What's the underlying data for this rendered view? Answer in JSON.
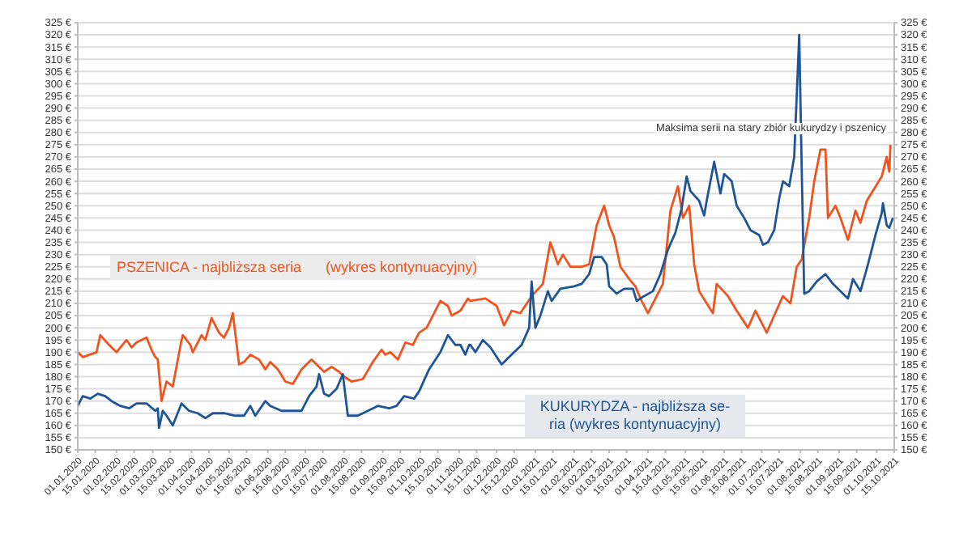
{
  "chart_data": {
    "type": "line",
    "xlim": [
      "2020-01-01",
      "2021-10-15"
    ],
    "xticks": [
      {
        "value": "2020-01-01",
        "label": "01.01.2020"
      },
      {
        "value": "2020-01-15",
        "label": "15.01.2020"
      },
      {
        "value": "2020-02-01",
        "label": "01.02.2020"
      },
      {
        "value": "2020-02-15",
        "label": "15.02.2020"
      },
      {
        "value": "2020-03-01",
        "label": "01.03.2020"
      },
      {
        "value": "2020-03-15",
        "label": "15.03.2020"
      },
      {
        "value": "2020-04-01",
        "label": "01.04.2020"
      },
      {
        "value": "2020-04-15",
        "label": "15.04.2020"
      },
      {
        "value": "2020-05-01",
        "label": "01.05.2020"
      },
      {
        "value": "2020-05-15",
        "label": "15.05.2020"
      },
      {
        "value": "2020-06-01",
        "label": "01.06.2020"
      },
      {
        "value": "2020-06-15",
        "label": "15.06.2020"
      },
      {
        "value": "2020-07-01",
        "label": "01.07.2020"
      },
      {
        "value": "2020-07-15",
        "label": "15.07.2020"
      },
      {
        "value": "2020-08-01",
        "label": "01.08.2020"
      },
      {
        "value": "2020-08-15",
        "label": "15.08.2020"
      },
      {
        "value": "2020-09-01",
        "label": "01.09.2020"
      },
      {
        "value": "2020-09-15",
        "label": "15.09.2020"
      },
      {
        "value": "2020-10-01",
        "label": "01.10.2020"
      },
      {
        "value": "2020-10-15",
        "label": "15.10.2020"
      },
      {
        "value": "2020-11-01",
        "label": "01.11.2020"
      },
      {
        "value": "2020-11-15",
        "label": "15.11.2020"
      },
      {
        "value": "2020-12-01",
        "label": "01.12.2020"
      },
      {
        "value": "2020-12-15",
        "label": "15.12.2020"
      },
      {
        "value": "2021-01-01",
        "label": "01.01.2021"
      },
      {
        "value": "2021-01-15",
        "label": "15.01.2021"
      },
      {
        "value": "2021-02-01",
        "label": "01.02.2021"
      },
      {
        "value": "2021-02-15",
        "label": "15.02.2021"
      },
      {
        "value": "2021-03-01",
        "label": "01.03.2021"
      },
      {
        "value": "2021-03-15",
        "label": "15.03.2021"
      },
      {
        "value": "2021-04-01",
        "label": "01.04.2021"
      },
      {
        "value": "2021-04-15",
        "label": "15.04.2021"
      },
      {
        "value": "2021-05-01",
        "label": "01.05.2021"
      },
      {
        "value": "2021-05-15",
        "label": "15.05.2021"
      },
      {
        "value": "2021-06-01",
        "label": "01.06.2021"
      },
      {
        "value": "2021-06-15",
        "label": "15.06.2021"
      },
      {
        "value": "2021-07-01",
        "label": "01.07.2021"
      },
      {
        "value": "2021-07-15",
        "label": "15.07.2021"
      },
      {
        "value": "2021-08-01",
        "label": "01.08.2021"
      },
      {
        "value": "2021-08-15",
        "label": "15.08.2021"
      },
      {
        "value": "2021-09-01",
        "label": "01.09.2021"
      },
      {
        "value": "2021-09-15",
        "label": "15.09.2021"
      },
      {
        "value": "2021-10-01",
        "label": "01.10.2021"
      },
      {
        "value": "2021-10-15",
        "label": "15.10.2021"
      }
    ],
    "ylim": [
      150,
      325
    ],
    "yticks": [
      {
        "value": 150,
        "label": "150 €"
      },
      {
        "value": 155,
        "label": "155 €"
      },
      {
        "value": 160,
        "label": "160 €"
      },
      {
        "value": 165,
        "label": "165 €"
      },
      {
        "value": 170,
        "label": "170 €"
      },
      {
        "value": 175,
        "label": "175 €"
      },
      {
        "value": 180,
        "label": "180 €"
      },
      {
        "value": 185,
        "label": "185 €"
      },
      {
        "value": 190,
        "label": "190 €"
      },
      {
        "value": 195,
        "label": "195 €"
      },
      {
        "value": 200,
        "label": "200 €"
      },
      {
        "value": 205,
        "label": "205 €"
      },
      {
        "value": 210,
        "label": "210 €"
      },
      {
        "value": 215,
        "label": "215 €"
      },
      {
        "value": 220,
        "label": "220 €"
      },
      {
        "value": 225,
        "label": "225 €"
      },
      {
        "value": 230,
        "label": "230 €"
      },
      {
        "value": 235,
        "label": "235 €"
      },
      {
        "value": 240,
        "label": "240 €"
      },
      {
        "value": 245,
        "label": "245 €"
      },
      {
        "value": 250,
        "label": "250 €"
      },
      {
        "value": 255,
        "label": "255 €"
      },
      {
        "value": 260,
        "label": "260 €"
      },
      {
        "value": 265,
        "label": "265 €"
      },
      {
        "value": 270,
        "label": "270 €"
      },
      {
        "value": 275,
        "label": "275 €"
      },
      {
        "value": 280,
        "label": "280 €"
      },
      {
        "value": 285,
        "label": "285 €"
      },
      {
        "value": 290,
        "label": "290 €"
      },
      {
        "value": 295,
        "label": "295 €"
      },
      {
        "value": 300,
        "label": "300 €"
      },
      {
        "value": 305,
        "label": "305 €"
      },
      {
        "value": 310,
        "label": "310 €"
      },
      {
        "value": 315,
        "label": "315 €"
      },
      {
        "value": 320,
        "label": "320 €"
      },
      {
        "value": 325,
        "label": "325 €"
      }
    ],
    "y2lim": [
      150,
      325
    ],
    "y2ticks": [
      {
        "value": 150,
        "label": "150 €"
      },
      {
        "value": 155,
        "label": "155 €"
      },
      {
        "value": 160,
        "label": "160 €"
      },
      {
        "value": 165,
        "label": "165 €"
      },
      {
        "value": 170,
        "label": "170 €"
      },
      {
        "value": 175,
        "label": "175 €"
      },
      {
        "value": 180,
        "label": "180 €"
      },
      {
        "value": 185,
        "label": "185 €"
      },
      {
        "value": 190,
        "label": "190 €"
      },
      {
        "value": 195,
        "label": "195 €"
      },
      {
        "value": 200,
        "label": "200 €"
      },
      {
        "value": 205,
        "label": "205 €"
      },
      {
        "value": 210,
        "label": "210 €"
      },
      {
        "value": 215,
        "label": "215 €"
      },
      {
        "value": 220,
        "label": "220 €"
      },
      {
        "value": 225,
        "label": "225 €"
      },
      {
        "value": 230,
        "label": "230 €"
      },
      {
        "value": 235,
        "label": "235 €"
      },
      {
        "value": 240,
        "label": "240 €"
      },
      {
        "value": 245,
        "label": "245 €"
      },
      {
        "value": 250,
        "label": "250 €"
      },
      {
        "value": 255,
        "label": "255 €"
      },
      {
        "value": 260,
        "label": "260 €"
      },
      {
        "value": 265,
        "label": "265 €"
      },
      {
        "value": 270,
        "label": "270 €"
      },
      {
        "value": 275,
        "label": "275 €"
      },
      {
        "value": 280,
        "label": "280 €"
      },
      {
        "value": 285,
        "label": "285 €"
      },
      {
        "value": 290,
        "label": "290 €"
      },
      {
        "value": 295,
        "label": "295 €"
      },
      {
        "value": 300,
        "label": "300 €"
      },
      {
        "value": 305,
        "label": "305 €"
      },
      {
        "value": 310,
        "label": "310 €"
      },
      {
        "value": 315,
        "label": "315 €"
      },
      {
        "value": 320,
        "label": "320 €"
      },
      {
        "value": 325,
        "label": "325 €"
      }
    ],
    "grid": "y",
    "legend": false,
    "marker": "none",
    "line_style": "solid",
    "annotations": [
      "Maksima serii na stary zbiór kukurydzy i pszenicy"
    ],
    "series": [
      {
        "name": "PSZENICA - najbliższa seria      (wykres kontynuacyjny)",
        "color": "#f0541e",
        "x": [
          "2020-01-01",
          "2020-01-05",
          "2020-01-16",
          "2020-01-19",
          "2020-01-26",
          "2020-02-01",
          "2020-02-09",
          "2020-02-13",
          "2020-02-17",
          "2020-02-25",
          "2020-02-29",
          "2020-03-03",
          "2020-03-05",
          "2020-03-08",
          "2020-03-12",
          "2020-03-17",
          "2020-03-24",
          "2020-03-25",
          "2020-03-31",
          "2020-04-02",
          "2020-04-09",
          "2020-04-12",
          "2020-04-17",
          "2020-04-23",
          "2020-04-27",
          "2020-05-01",
          "2020-05-04",
          "2020-05-09",
          "2020-05-13",
          "2020-05-18",
          "2020-05-25",
          "2020-05-30",
          "2020-06-03",
          "2020-06-09",
          "2020-06-15",
          "2020-06-21",
          "2020-06-28",
          "2020-07-06",
          "2020-07-12",
          "2020-07-16",
          "2020-07-22",
          "2020-07-28",
          "2020-08-01",
          "2020-08-07",
          "2020-08-16",
          "2020-08-24",
          "2020-08-31",
          "2020-09-03",
          "2020-09-07",
          "2020-09-13",
          "2020-09-19",
          "2020-09-25",
          "2020-09-30",
          "2020-10-06",
          "2020-10-10",
          "2020-10-17",
          "2020-10-23",
          "2020-10-26",
          "2020-11-02",
          "2020-11-08",
          "2020-11-10",
          "2020-11-22",
          "2020-12-01",
          "2020-12-07",
          "2020-12-13",
          "2020-12-20",
          "2020-12-29",
          "2021-01-07",
          "2021-01-13",
          "2021-01-19",
          "2021-01-23",
          "2021-01-29",
          "2021-02-07",
          "2021-02-13",
          "2021-02-19",
          "2021-02-25",
          "2021-03-01",
          "2021-03-05",
          "2021-03-10",
          "2021-03-17",
          "2021-03-22",
          "2021-03-26",
          "2021-04-01",
          "2021-04-07",
          "2021-04-13",
          "2021-04-19",
          "2021-04-25",
          "2021-04-29",
          "2021-05-04",
          "2021-05-08",
          "2021-05-12",
          "2021-05-18",
          "2021-05-23",
          "2021-05-26",
          "2021-06-04",
          "2021-06-11",
          "2021-06-20",
          "2021-06-26",
          "2021-06-30",
          "2021-07-05",
          "2021-07-11",
          "2021-07-18",
          "2021-07-24",
          "2021-07-29",
          "2021-08-02",
          "2021-08-08",
          "2021-08-12",
          "2021-08-17",
          "2021-08-21",
          "2021-08-23",
          "2021-08-29",
          "2021-09-02",
          "2021-09-08",
          "2021-09-14",
          "2021-09-18",
          "2021-09-23",
          "2021-09-29",
          "2021-10-05",
          "2021-10-09",
          "2021-10-11",
          "2021-10-12"
        ],
        "values": [
          190,
          188,
          190,
          197,
          193,
          190,
          195,
          192,
          194,
          196,
          191,
          188,
          187,
          170,
          178,
          176,
          195,
          197,
          193,
          190,
          197,
          195,
          204,
          198,
          196,
          200,
          206,
          185,
          186,
          189,
          187,
          183,
          186,
          183,
          178,
          177,
          183,
          187,
          184,
          182,
          184,
          182,
          180,
          178,
          179,
          186,
          191,
          189,
          190,
          187,
          194,
          193,
          198,
          200,
          204,
          211,
          209,
          205,
          207,
          212,
          211,
          212,
          209,
          201,
          207,
          206,
          213,
          218,
          235,
          226,
          230,
          225,
          225,
          226,
          242,
          250,
          242,
          237,
          225,
          220,
          217,
          212,
          206,
          212,
          218,
          248,
          258,
          245,
          250,
          226,
          215,
          210,
          206,
          218,
          213,
          207,
          200,
          207,
          203,
          198,
          205,
          213,
          210,
          225,
          228,
          245,
          260,
          273,
          273,
          245,
          250,
          245,
          236,
          248,
          243,
          252,
          257,
          262,
          270,
          264,
          275
        ]
      },
      {
        "name": "KUKURYDZA - najbliższa se-\nria (wykres kontynuacyjny)",
        "color": "#1f5597",
        "x": [
          "2020-01-01",
          "2020-01-05",
          "2020-01-11",
          "2020-01-17",
          "2020-01-23",
          "2020-01-28",
          "2020-02-04",
          "2020-02-11",
          "2020-02-17",
          "2020-02-25",
          "2020-03-03",
          "2020-03-05",
          "2020-03-06",
          "2020-03-09",
          "2020-03-12",
          "2020-03-17",
          "2020-03-24",
          "2020-03-30",
          "2020-04-06",
          "2020-04-12",
          "2020-04-18",
          "2020-04-27",
          "2020-05-06",
          "2020-05-13",
          "2020-05-18",
          "2020-05-22",
          "2020-05-30",
          "2020-06-03",
          "2020-06-12",
          "2020-06-21",
          "2020-06-28",
          "2020-07-04",
          "2020-07-10",
          "2020-07-12",
          "2020-07-16",
          "2020-07-20",
          "2020-07-26",
          "2020-07-31",
          "2020-08-04",
          "2020-08-12",
          "2020-08-20",
          "2020-08-28",
          "2020-09-06",
          "2020-09-12",
          "2020-09-18",
          "2020-09-26",
          "2020-09-30",
          "2020-10-08",
          "2020-10-17",
          "2020-10-23",
          "2020-10-29",
          "2020-11-02",
          "2020-11-06",
          "2020-11-09",
          "2020-11-10",
          "2020-11-14",
          "2020-11-20",
          "2020-11-26",
          "2020-12-05",
          "2020-12-13",
          "2020-12-21",
          "2020-12-27",
          "2020-12-29",
          "2021-01-01",
          "2021-01-05",
          "2021-01-11",
          "2021-01-14",
          "2021-01-21",
          "2021-02-01",
          "2021-02-07",
          "2021-02-13",
          "2021-02-17",
          "2021-02-23",
          "2021-02-27",
          "2021-03-01",
          "2021-03-07",
          "2021-03-13",
          "2021-03-20",
          "2021-03-23",
          "2021-03-29",
          "2021-04-05",
          "2021-04-11",
          "2021-04-17",
          "2021-04-23",
          "2021-04-28",
          "2021-05-02",
          "2021-05-05",
          "2021-05-12",
          "2021-05-16",
          "2021-05-18",
          "2021-05-24",
          "2021-05-29",
          "2021-06-01",
          "2021-06-07",
          "2021-06-11",
          "2021-06-17",
          "2021-06-22",
          "2021-06-29",
          "2021-07-02",
          "2021-07-06",
          "2021-07-11",
          "2021-07-15",
          "2021-07-18",
          "2021-07-23",
          "2021-07-27",
          "2021-07-31",
          "2021-08-02",
          "2021-08-04",
          "2021-08-08",
          "2021-08-14",
          "2021-08-21",
          "2021-08-27",
          "2021-09-02",
          "2021-09-08",
          "2021-09-12",
          "2021-09-18",
          "2021-09-24",
          "2021-09-30",
          "2021-10-05",
          "2021-10-06",
          "2021-10-09",
          "2021-10-11",
          "2021-10-14"
        ],
        "values": [
          168,
          172,
          171,
          173,
          172,
          170,
          168,
          167,
          169,
          169,
          166,
          167,
          159,
          166,
          164,
          160,
          169,
          166,
          165,
          163,
          165,
          165,
          164,
          164,
          168,
          164,
          170,
          168,
          166,
          166,
          166,
          172,
          176,
          181,
          173,
          172,
          175,
          181,
          164,
          164,
          166,
          168,
          167,
          168,
          172,
          171,
          174,
          183,
          190,
          197,
          193,
          193,
          189,
          193,
          193,
          190,
          195,
          192,
          185,
          189,
          193,
          200,
          219,
          200,
          205,
          215,
          211,
          216,
          217,
          218,
          222,
          229,
          229,
          226,
          217,
          214,
          216,
          216,
          211,
          213,
          215,
          222,
          232,
          239,
          249,
          262,
          256,
          252,
          246,
          252,
          268,
          255,
          263,
          260,
          250,
          245,
          240,
          238,
          234,
          235,
          240,
          253,
          260,
          258,
          270,
          320,
          265,
          214,
          215,
          219,
          222,
          218,
          215,
          212,
          220,
          215,
          226,
          238,
          247,
          251,
          242,
          241,
          245
        ]
      }
    ]
  }
}
